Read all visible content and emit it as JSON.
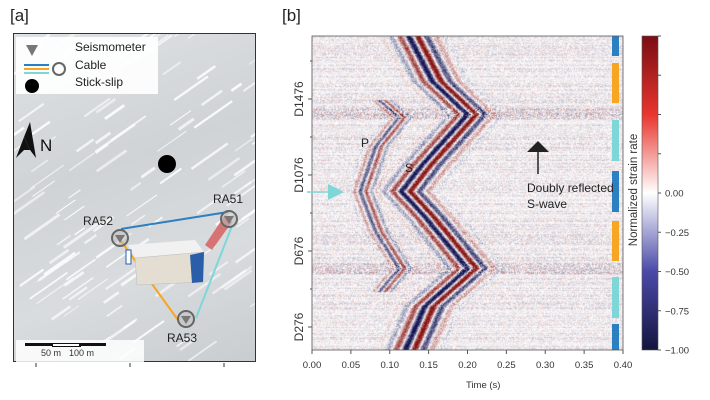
{
  "panel_a": {
    "label": "[a]",
    "legend": [
      {
        "symbol": "triangle",
        "label": "Seismometer"
      },
      {
        "symbol": "cable-lines-circle",
        "label": "Cable"
      },
      {
        "symbol": "filled-circle",
        "label": "Stick-slip"
      }
    ],
    "north_label": "N",
    "stations": [
      "RA51",
      "RA52",
      "RA53"
    ],
    "scale_bar": [
      "50 m",
      "100 m"
    ],
    "cable_colors": {
      "blue": "#2c7fc0",
      "orange": "#f5a623",
      "cyan": "#7fd6d8"
    }
  },
  "panel_b": {
    "label": "[b]"
  },
  "chart_data": {
    "type": "heatmap",
    "xlabel": "Time (s)",
    "xlim": [
      0.0,
      0.4
    ],
    "x_ticks": [
      "0.00",
      "0.05",
      "0.10",
      "0.15",
      "0.20",
      "0.25",
      "0.30",
      "0.35",
      "0.40"
    ],
    "y_ticks": [
      "D1476",
      "D1076",
      "D676",
      "D276"
    ],
    "colorbar": {
      "label": "Normalized strain rate",
      "range": [
        -1.0,
        1.0
      ],
      "ticks": [
        "0.00",
        "−0.25",
        "−0.50",
        "−0.75",
        "−1.00"
      ],
      "colormap": "blue-white-red"
    },
    "annotations": [
      "P",
      "S",
      "Doubly reflected",
      "S-wave"
    ],
    "segment_colors": [
      "#2c7fc0",
      "#f5a623",
      "#7fd6d8",
      "#2c7fc0",
      "#f5a623",
      "#7fd6d8",
      "#2c7fc0"
    ]
  }
}
